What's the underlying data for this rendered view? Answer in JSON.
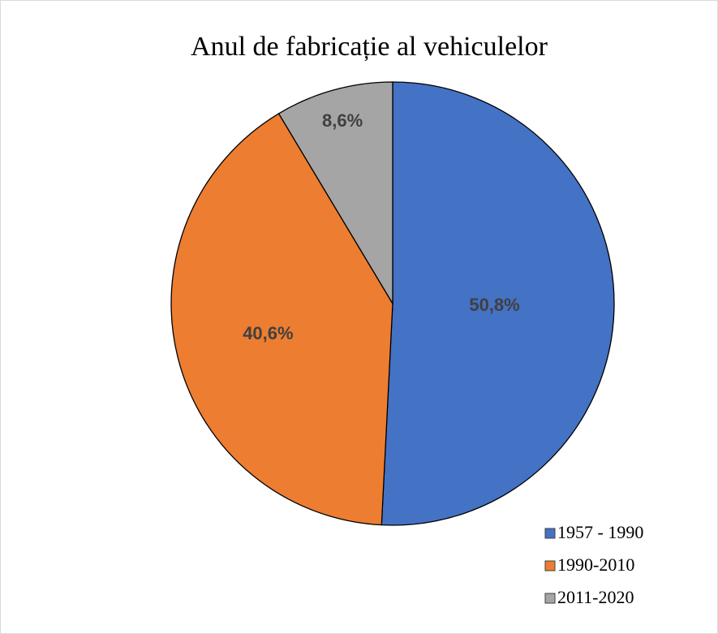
{
  "chart_data": {
    "type": "pie",
    "title": "Anul de fabricație al vehiculelor",
    "categories": [
      "1957 - 1990",
      "1990-2010",
      "2011-2020"
    ],
    "values": [
      50.8,
      40.6,
      8.6
    ],
    "value_labels": [
      "50,8%",
      "40,6%",
      "8,6%"
    ],
    "colors": [
      "#4472c4",
      "#ed7d31",
      "#a5a5a5"
    ],
    "legend": "lower right"
  }
}
